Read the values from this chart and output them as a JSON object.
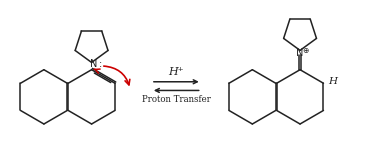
{
  "bg_color": "#ffffff",
  "arrow_color": "#cc0000",
  "bond_color": "#222222",
  "text_color": "#222222",
  "h_plus_text": "H⁺",
  "proton_transfer_text": "Proton Transfer",
  "figsize": [
    3.77,
    1.56
  ],
  "dpi": 100,
  "xlim": [
    0,
    10
  ],
  "ylim": [
    0,
    4.1
  ]
}
